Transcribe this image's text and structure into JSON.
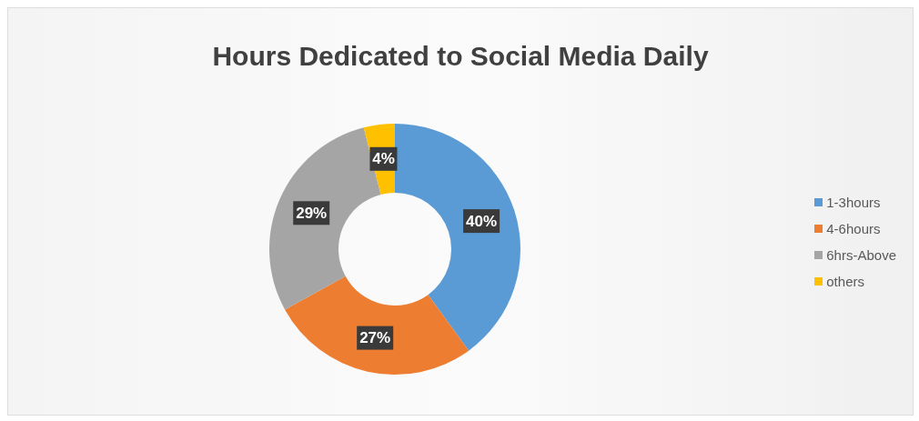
{
  "chart_data": {
    "type": "donut",
    "title": "Hours Dedicated to Social Media Daily",
    "categories": [
      "1-3hours",
      "4-6hours",
      "6hrs-Above",
      "others"
    ],
    "values": [
      40,
      27,
      29,
      4
    ],
    "colors": [
      "#5b9bd5",
      "#ed7d31",
      "#a5a5a5",
      "#ffc000"
    ],
    "value_labels": [
      "40%",
      "27%",
      "29%",
      "4%"
    ],
    "legend": "right"
  }
}
